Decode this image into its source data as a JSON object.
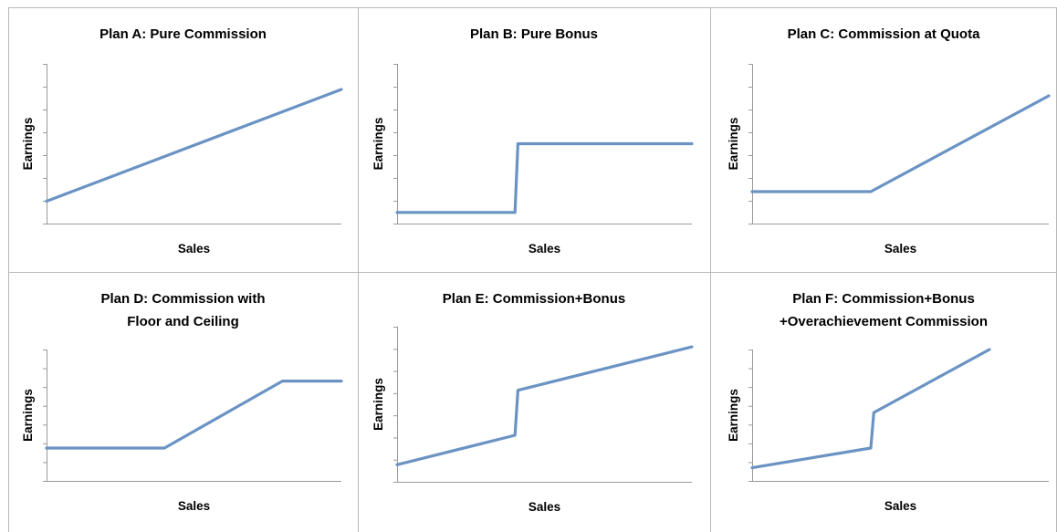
{
  "colors": {
    "line": "#6a93c4",
    "axis": "#9a9a9a",
    "border": "#b8b8b8"
  },
  "panels": [
    {
      "title": [
        "Plan A: Pure Commission"
      ],
      "xlabel": "Sales",
      "ylabel": "Earnings",
      "chart_data": {
        "type": "line",
        "title": "Plan A: Pure Commission",
        "xlabel": "Sales",
        "ylabel": "Earnings",
        "xlim": [
          0,
          100
        ],
        "ylim": [
          0,
          100
        ],
        "series": [
          {
            "x": [
              0,
              100
            ],
            "y": [
              14,
              84
            ]
          }
        ]
      }
    },
    {
      "title": [
        "Plan B: Pure Bonus"
      ],
      "xlabel": "Sales",
      "ylabel": "Earnings",
      "chart_data": {
        "type": "line",
        "title": "Plan B: Pure Bonus",
        "xlabel": "Sales",
        "ylabel": "Earnings",
        "xlim": [
          0,
          100
        ],
        "ylim": [
          0,
          100
        ],
        "series": [
          {
            "x": [
              0,
              40,
              41,
              100
            ],
            "y": [
              7,
              7,
              50,
              50
            ]
          }
        ]
      }
    },
    {
      "title": [
        "Plan C: Commission at Quota"
      ],
      "xlabel": "Sales",
      "ylabel": "Earnings",
      "chart_data": {
        "type": "line",
        "title": "Plan C: Commission at Quota",
        "xlabel": "Sales",
        "ylabel": "Earnings",
        "xlim": [
          0,
          100
        ],
        "ylim": [
          0,
          100
        ],
        "series": [
          {
            "x": [
              0,
              40,
              100
            ],
            "y": [
              20,
              20,
              80
            ]
          }
        ]
      }
    },
    {
      "title": [
        "Plan D: Commission with",
        "Floor and Ceiling"
      ],
      "xlabel": "Sales",
      "ylabel": "Earnings",
      "chart_data": {
        "type": "line",
        "title": "Plan D: Commission with Floor and Ceiling",
        "xlabel": "Sales",
        "ylabel": "Earnings",
        "xlim": [
          0,
          100
        ],
        "ylim": [
          0,
          100
        ],
        "series": [
          {
            "x": [
              0,
              40,
              80,
              100
            ],
            "y": [
              25,
              25,
              76,
              76
            ]
          }
        ]
      }
    },
    {
      "title": [
        "Plan E: Commission+Bonus"
      ],
      "xlabel": "Sales",
      "ylabel": "Earnings",
      "chart_data": {
        "type": "line",
        "title": "Plan E: Commission+Bonus",
        "xlabel": "Sales",
        "ylabel": "Earnings",
        "xlim": [
          0,
          100
        ],
        "ylim": [
          0,
          100
        ],
        "series": [
          {
            "x": [
              0,
              40,
              41,
              100
            ],
            "y": [
              11,
              30,
              59,
              87
            ]
          }
        ]
      }
    },
    {
      "title": [
        "Plan F: Commission+Bonus",
        "+Overachievement Commission"
      ],
      "xlabel": "Sales",
      "ylabel": "Earnings",
      "chart_data": {
        "type": "line",
        "title": "Plan F: Commission+Bonus +Overachievement Commission",
        "xlabel": "Sales",
        "ylabel": "Earnings",
        "xlim": [
          0,
          100
        ],
        "ylim": [
          0,
          100
        ],
        "series": [
          {
            "x": [
              0,
              40,
              41,
              80
            ],
            "y": [
              10,
              25,
              52,
              100
            ]
          }
        ]
      }
    }
  ]
}
